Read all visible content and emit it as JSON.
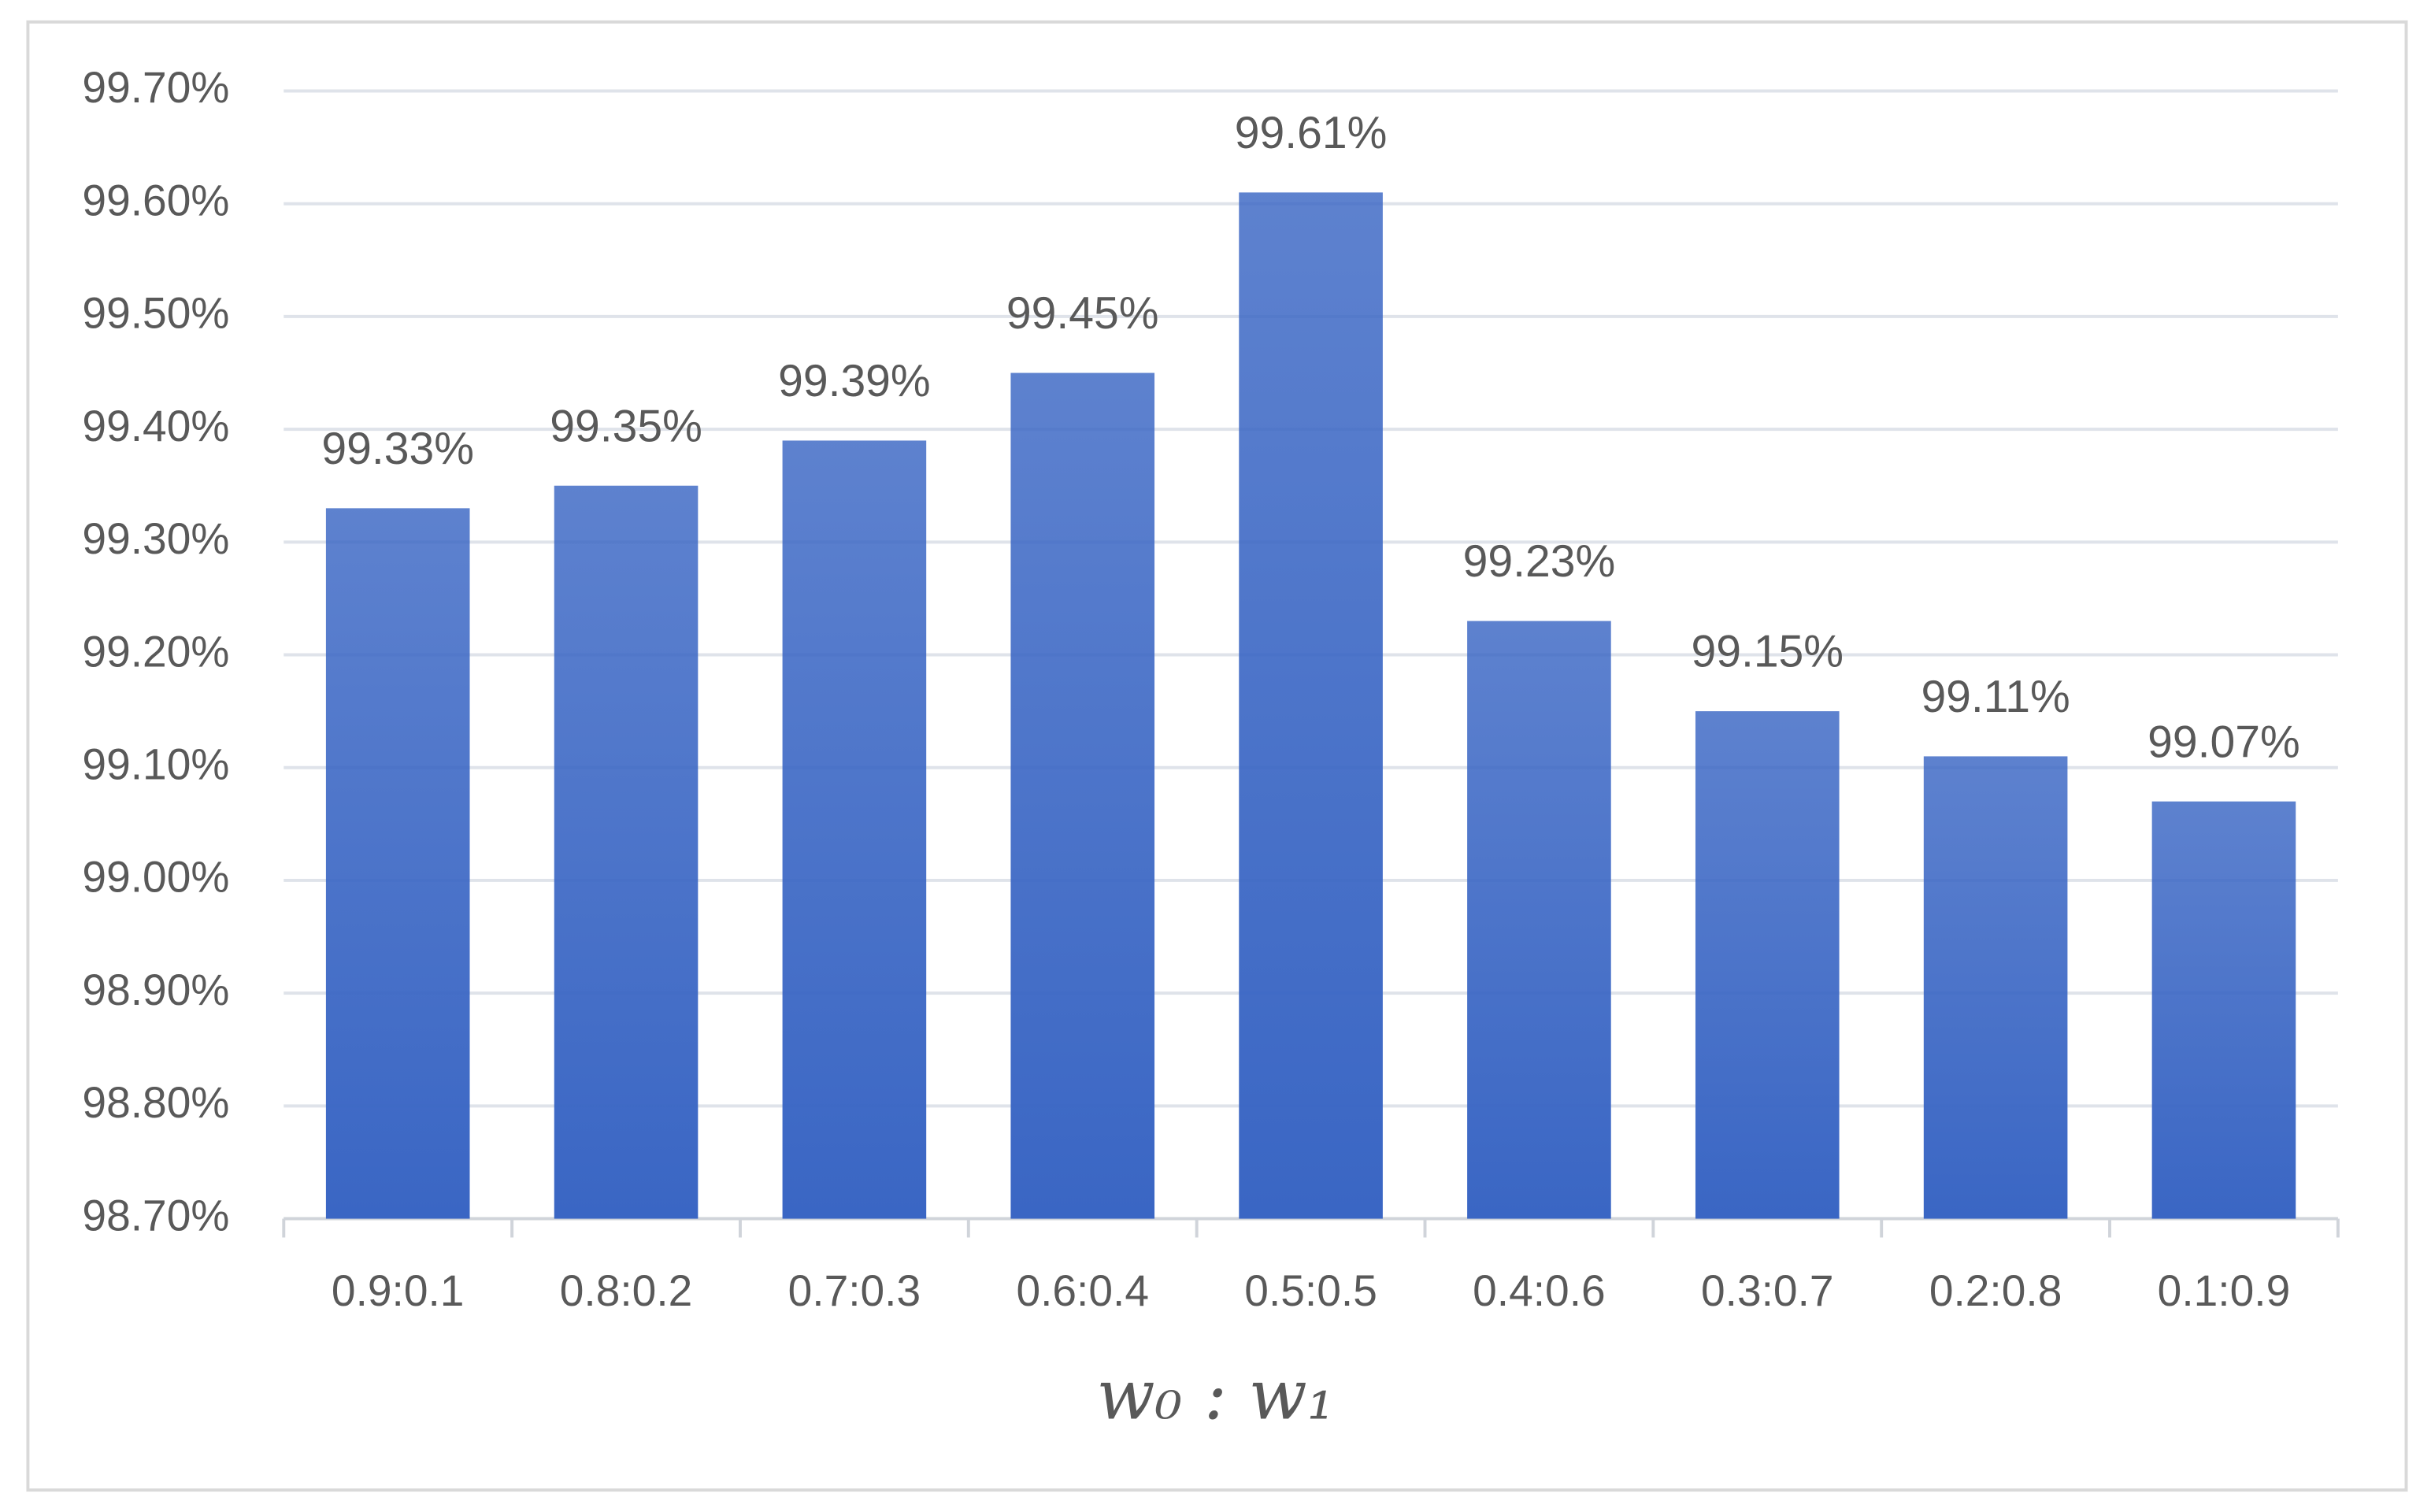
{
  "chart_data": {
    "type": "bar",
    "x_label": "w₀ : w₁",
    "categories": [
      "0.9:0.1",
      "0.8:0.2",
      "0.7:0.3",
      "0.6:0.4",
      "0.5:0.5",
      "0.4:0.6",
      "0.3:0.7",
      "0.2:0.8",
      "0.1:0.9"
    ],
    "values": [
      99.33,
      99.35,
      99.39,
      99.45,
      99.61,
      99.23,
      99.15,
      99.11,
      99.07
    ],
    "value_labels": [
      "99.33%",
      "99.35%",
      "99.39%",
      "99.45%",
      "99.61%",
      "99.23%",
      "99.15%",
      "99.11%",
      "99.07%"
    ],
    "color": "#3a66c4",
    "ylim": [
      98.7,
      99.7
    ],
    "yticks": [
      {
        "value": 98.7,
        "label": "98.70%"
      },
      {
        "value": 98.8,
        "label": "98.80%"
      },
      {
        "value": 98.9,
        "label": "98.90%"
      },
      {
        "value": 99.0,
        "label": "99.00%"
      },
      {
        "value": 99.1,
        "label": "99.10%"
      },
      {
        "value": 99.2,
        "label": "99.20%"
      },
      {
        "value": 99.3,
        "label": "99.30%"
      },
      {
        "value": 99.4,
        "label": "99.40%"
      },
      {
        "value": 99.5,
        "label": "99.50%"
      },
      {
        "value": 99.6,
        "label": "99.60%"
      },
      {
        "value": 99.7,
        "label": "99.70%"
      }
    ],
    "grid": true
  }
}
